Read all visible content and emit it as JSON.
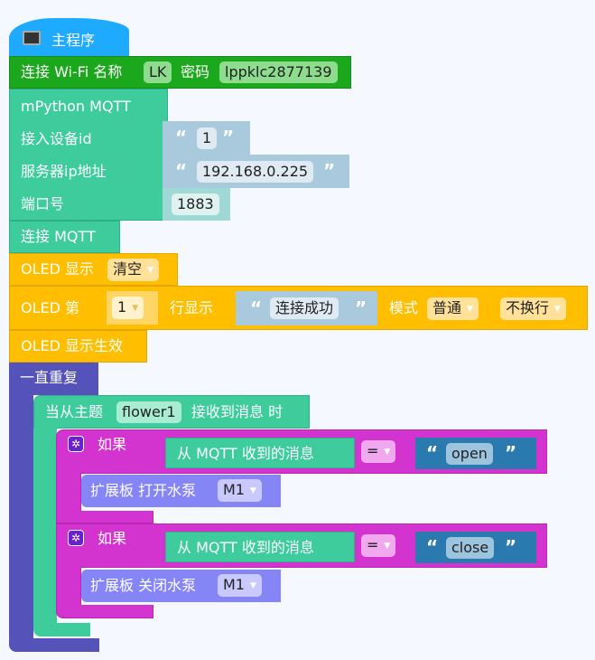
{
  "colors": {
    "hat": "#1eabff",
    "wifi": "#1ca81c",
    "mqtt": "#3ecc9c",
    "oled": "#ffbf00",
    "forever": "#5553b9",
    "if": "#d334d0",
    "pump": "#8585f5",
    "string": "#a9c9dc",
    "string_dark": "#2a7ab0"
  },
  "main": {
    "icon": "board-icon",
    "label": "主程序"
  },
  "wifi": {
    "label1": "连接 Wi-Fi 名称",
    "ssid": "LK",
    "label2": "密码",
    "password": "lppklc2877139"
  },
  "mqtt": {
    "title": "mPython MQTT",
    "device_label": "接入设备id",
    "device_id": "1",
    "server_label": "服务器ip地址",
    "server_ip": "192.168.0.225",
    "port_label": "端口号",
    "port": "1883",
    "open_quote": "“",
    "close_quote": "”"
  },
  "connect_mqtt": "连接 MQTT",
  "oled_clear": {
    "label": "OLED 显示",
    "option": "清空"
  },
  "oled_line": {
    "label1": "OLED 第",
    "line": "1",
    "label2": "行显示",
    "text": "连接成功",
    "label3": "模式",
    "mode": "普通",
    "wrap": "不换行"
  },
  "oled_show": "OLED 显示生效",
  "forever": "一直重复",
  "topic_event": {
    "label1": "当从主题",
    "topic": "flower1",
    "label2": "接收到消息 时"
  },
  "if_blocks": [
    {
      "label": "如果",
      "condition": "从 MQTT 收到的消息",
      "op": "=",
      "value": "open",
      "action_label": "扩展板 打开水泵",
      "motor": "M1"
    },
    {
      "label": "如果",
      "condition": "从 MQTT 收到的消息",
      "op": "=",
      "value": "close",
      "action_label": "扩展板 关闭水泵",
      "motor": "M1"
    }
  ]
}
